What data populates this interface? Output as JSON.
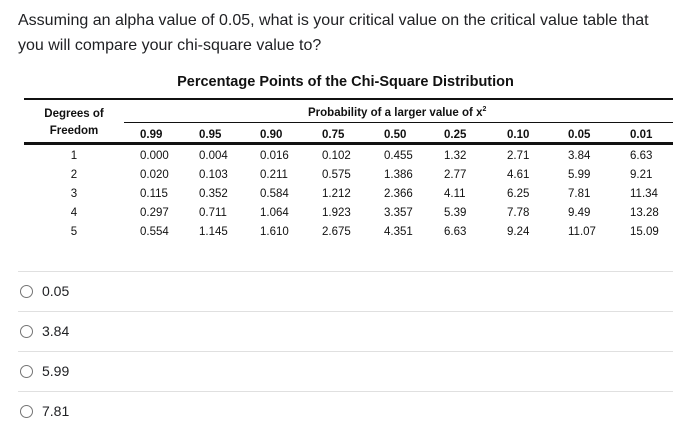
{
  "question": "Assuming an alpha value of 0.05, what is your critical value on the critical value table that you will compare your chi-square value to?",
  "table": {
    "title": "Percentage Points of the Chi-Square Distribution",
    "df_header_line1": "Degrees of",
    "df_header_line2": "Freedom",
    "prob_header": "Probability of a larger value of x",
    "prob_header_sup": "2",
    "columns": [
      "0.99",
      "0.95",
      "0.90",
      "0.75",
      "0.50",
      "0.25",
      "0.10",
      "0.05",
      "0.01"
    ],
    "rows": [
      {
        "df": "1",
        "values": [
          "0.000",
          "0.004",
          "0.016",
          "0.102",
          "0.455",
          "1.32",
          "2.71",
          "3.84",
          "6.63"
        ]
      },
      {
        "df": "2",
        "values": [
          "0.020",
          "0.103",
          "0.211",
          "0.575",
          "1.386",
          "2.77",
          "4.61",
          "5.99",
          "9.21"
        ]
      },
      {
        "df": "3",
        "values": [
          "0.115",
          "0.352",
          "0.584",
          "1.212",
          "2.366",
          "4.11",
          "6.25",
          "7.81",
          "11.34"
        ]
      },
      {
        "df": "4",
        "values": [
          "0.297",
          "0.711",
          "1.064",
          "1.923",
          "3.357",
          "5.39",
          "7.78",
          "9.49",
          "13.28"
        ]
      },
      {
        "df": "5",
        "values": [
          "0.554",
          "1.145",
          "1.610",
          "2.675",
          "4.351",
          "6.63",
          "9.24",
          "11.07",
          "15.09"
        ]
      }
    ]
  },
  "options": [
    {
      "label": "0.05"
    },
    {
      "label": "3.84"
    },
    {
      "label": "5.99"
    },
    {
      "label": "7.81"
    }
  ]
}
